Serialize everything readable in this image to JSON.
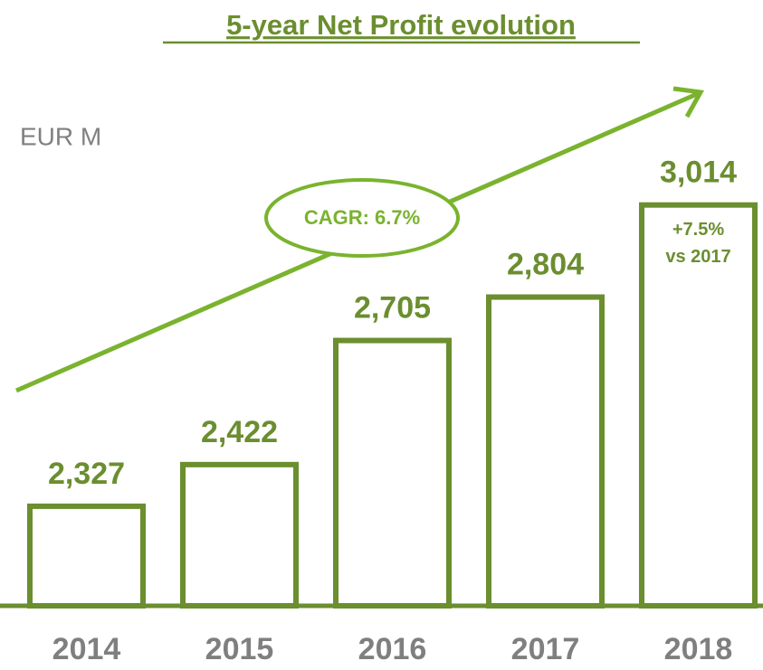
{
  "chart_data": {
    "type": "bar",
    "title": "5-year Net Profit evolution",
    "unit_label": "EUR M",
    "categories": [
      "2014",
      "2015",
      "2016",
      "2017",
      "2018"
    ],
    "values": [
      2327,
      2422,
      2705,
      2804,
      3014
    ],
    "value_labels": [
      "2,327",
      "2,422",
      "2,705",
      "2,804",
      "3,014"
    ],
    "color": "#6b8e2f",
    "ylim": [
      2100,
      3100
    ],
    "cagr_label": "CAGR: 6.7%",
    "last_bar_note": [
      "+7.5%",
      "vs 2017"
    ]
  }
}
